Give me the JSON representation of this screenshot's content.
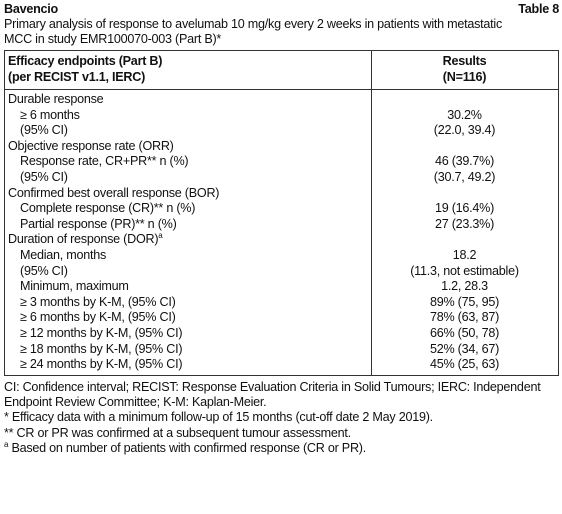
{
  "header": {
    "title": "Bavencio",
    "table_label": "Table 8",
    "caption": "Primary analysis of response to avelumab 10 mg/kg every 2 weeks in patients with metastatic MCC in study EMR100070-003 (Part B)*"
  },
  "table": {
    "columns": [
      [
        "Efficacy endpoints (Part B)",
        "(per RECIST v1.1, IERC)"
      ],
      [
        "Results",
        "(N=116)"
      ]
    ],
    "sections": [
      {
        "heading": "Durable response",
        "rows": [
          [
            "≥ 6 months",
            "30.2%"
          ],
          [
            "(95% CI)",
            "(22.0, 39.4)"
          ]
        ]
      },
      {
        "heading": "Objective response rate (ORR)",
        "rows": [
          [
            "Response rate, CR+PR** n (%)",
            "46 (39.7%)"
          ],
          [
            "(95% CI)",
            "(30.7, 49.2)"
          ]
        ]
      },
      {
        "heading": "Confirmed best overall response (BOR)",
        "rows": [
          [
            "Complete response (CR)** n (%)",
            "19 (16.4%)"
          ],
          [
            "Partial response (PR)** n (%)",
            "27 (23.3%)"
          ]
        ]
      },
      {
        "heading": "Duration of response (DOR)",
        "heading_marker": "a",
        "rows": [
          [
            "Median, months",
            "18.2"
          ],
          [
            "(95% CI)",
            "(11.3, not estimable)"
          ],
          [
            "Minimum, maximum",
            "1.2, 28.3"
          ],
          [
            "≥ 3 months by K-M, (95% CI)",
            "89% (75, 95)"
          ],
          [
            "≥ 6 months by K-M, (95% CI)",
            "78% (63, 87)"
          ],
          [
            "≥ 12 months by K-M, (95% CI)",
            "66% (50, 78)"
          ],
          [
            "≥ 18 months by K-M, (95% CI)",
            "52% (34, 67)"
          ],
          [
            "≥ 24 months by K-M, (95% CI)",
            "45% (25, 63)"
          ]
        ]
      }
    ]
  },
  "footnotes": {
    "abbreviations": "CI: Confidence interval; RECIST: Response Evaluation Criteria in Solid Tumours; IERC: Independent Endpoint Review Committee; K-M: Kaplan-Meier.",
    "notes": [
      "* Efficacy data with a minimum follow-up of 15 months (cut-off date 2 May 2019).",
      "** CR or PR was confirmed at a subsequent tumour assessment."
    ],
    "marked": {
      "marker": "a",
      "text": "Based on number of patients with confirmed response (CR or PR)."
    }
  }
}
